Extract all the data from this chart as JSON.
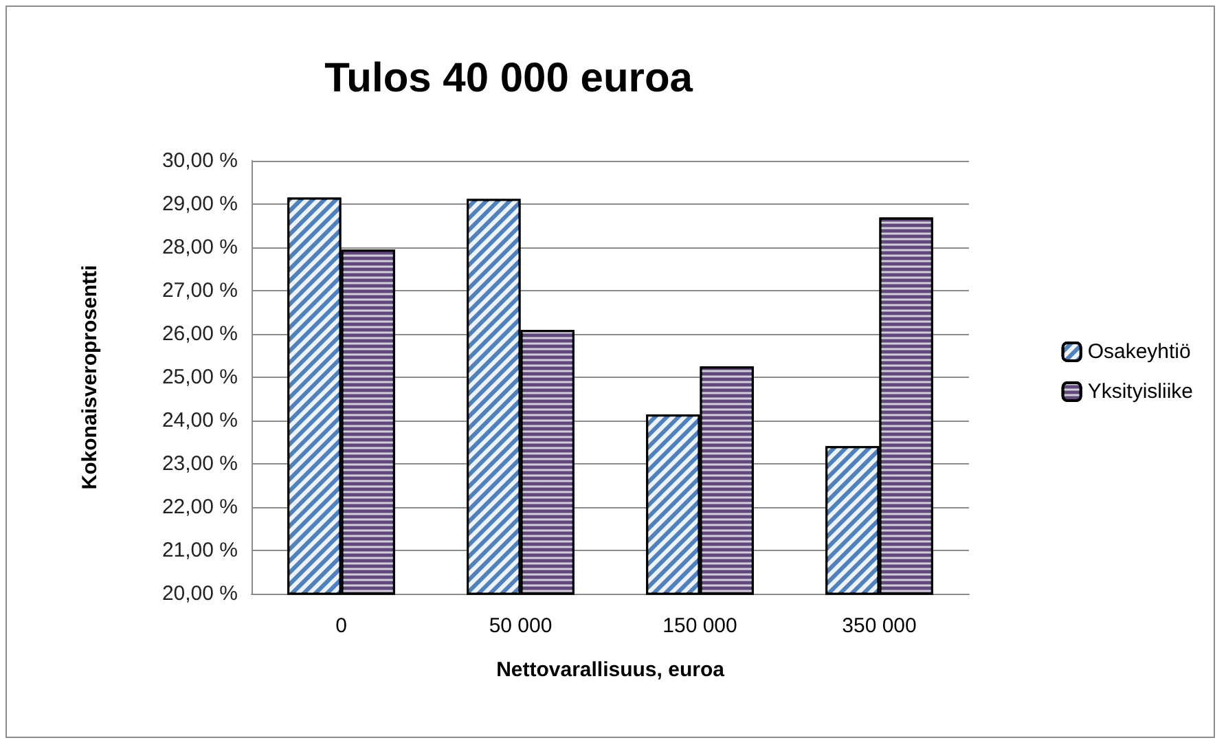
{
  "chart_data": {
    "type": "bar",
    "title": "Tulos 40 000 euroa",
    "xlabel": "Nettovarallisuus, euroa",
    "ylabel": "Kokonaisveroprosentti",
    "categories": [
      "0",
      "50 000",
      "150 000",
      "350 000"
    ],
    "series": [
      {
        "name": "Osakeyhtiö",
        "color": "#4f81bd",
        "values": [
          29.15,
          29.12,
          24.14,
          23.41
        ]
      },
      {
        "name": "Yksityisliike",
        "color": "#5f497a",
        "values": [
          27.95,
          26.09,
          25.25,
          28.69
        ]
      }
    ],
    "ylim": [
      20,
      30
    ],
    "yticks": [
      {
        "value": 20,
        "label": "20,00 %"
      },
      {
        "value": 21,
        "label": "21,00 %"
      },
      {
        "value": 22,
        "label": "22,00 %"
      },
      {
        "value": 23,
        "label": "23,00 %"
      },
      {
        "value": 24,
        "label": "24,00 %"
      },
      {
        "value": 25,
        "label": "25,00 %"
      },
      {
        "value": 26,
        "label": "26,00 %"
      },
      {
        "value": 27,
        "label": "27,00 %"
      },
      {
        "value": 28,
        "label": "28,00 %"
      },
      {
        "value": 29,
        "label": "29,00 %"
      },
      {
        "value": 30,
        "label": "30,00 %"
      }
    ],
    "grid": "y",
    "legend": "right"
  }
}
